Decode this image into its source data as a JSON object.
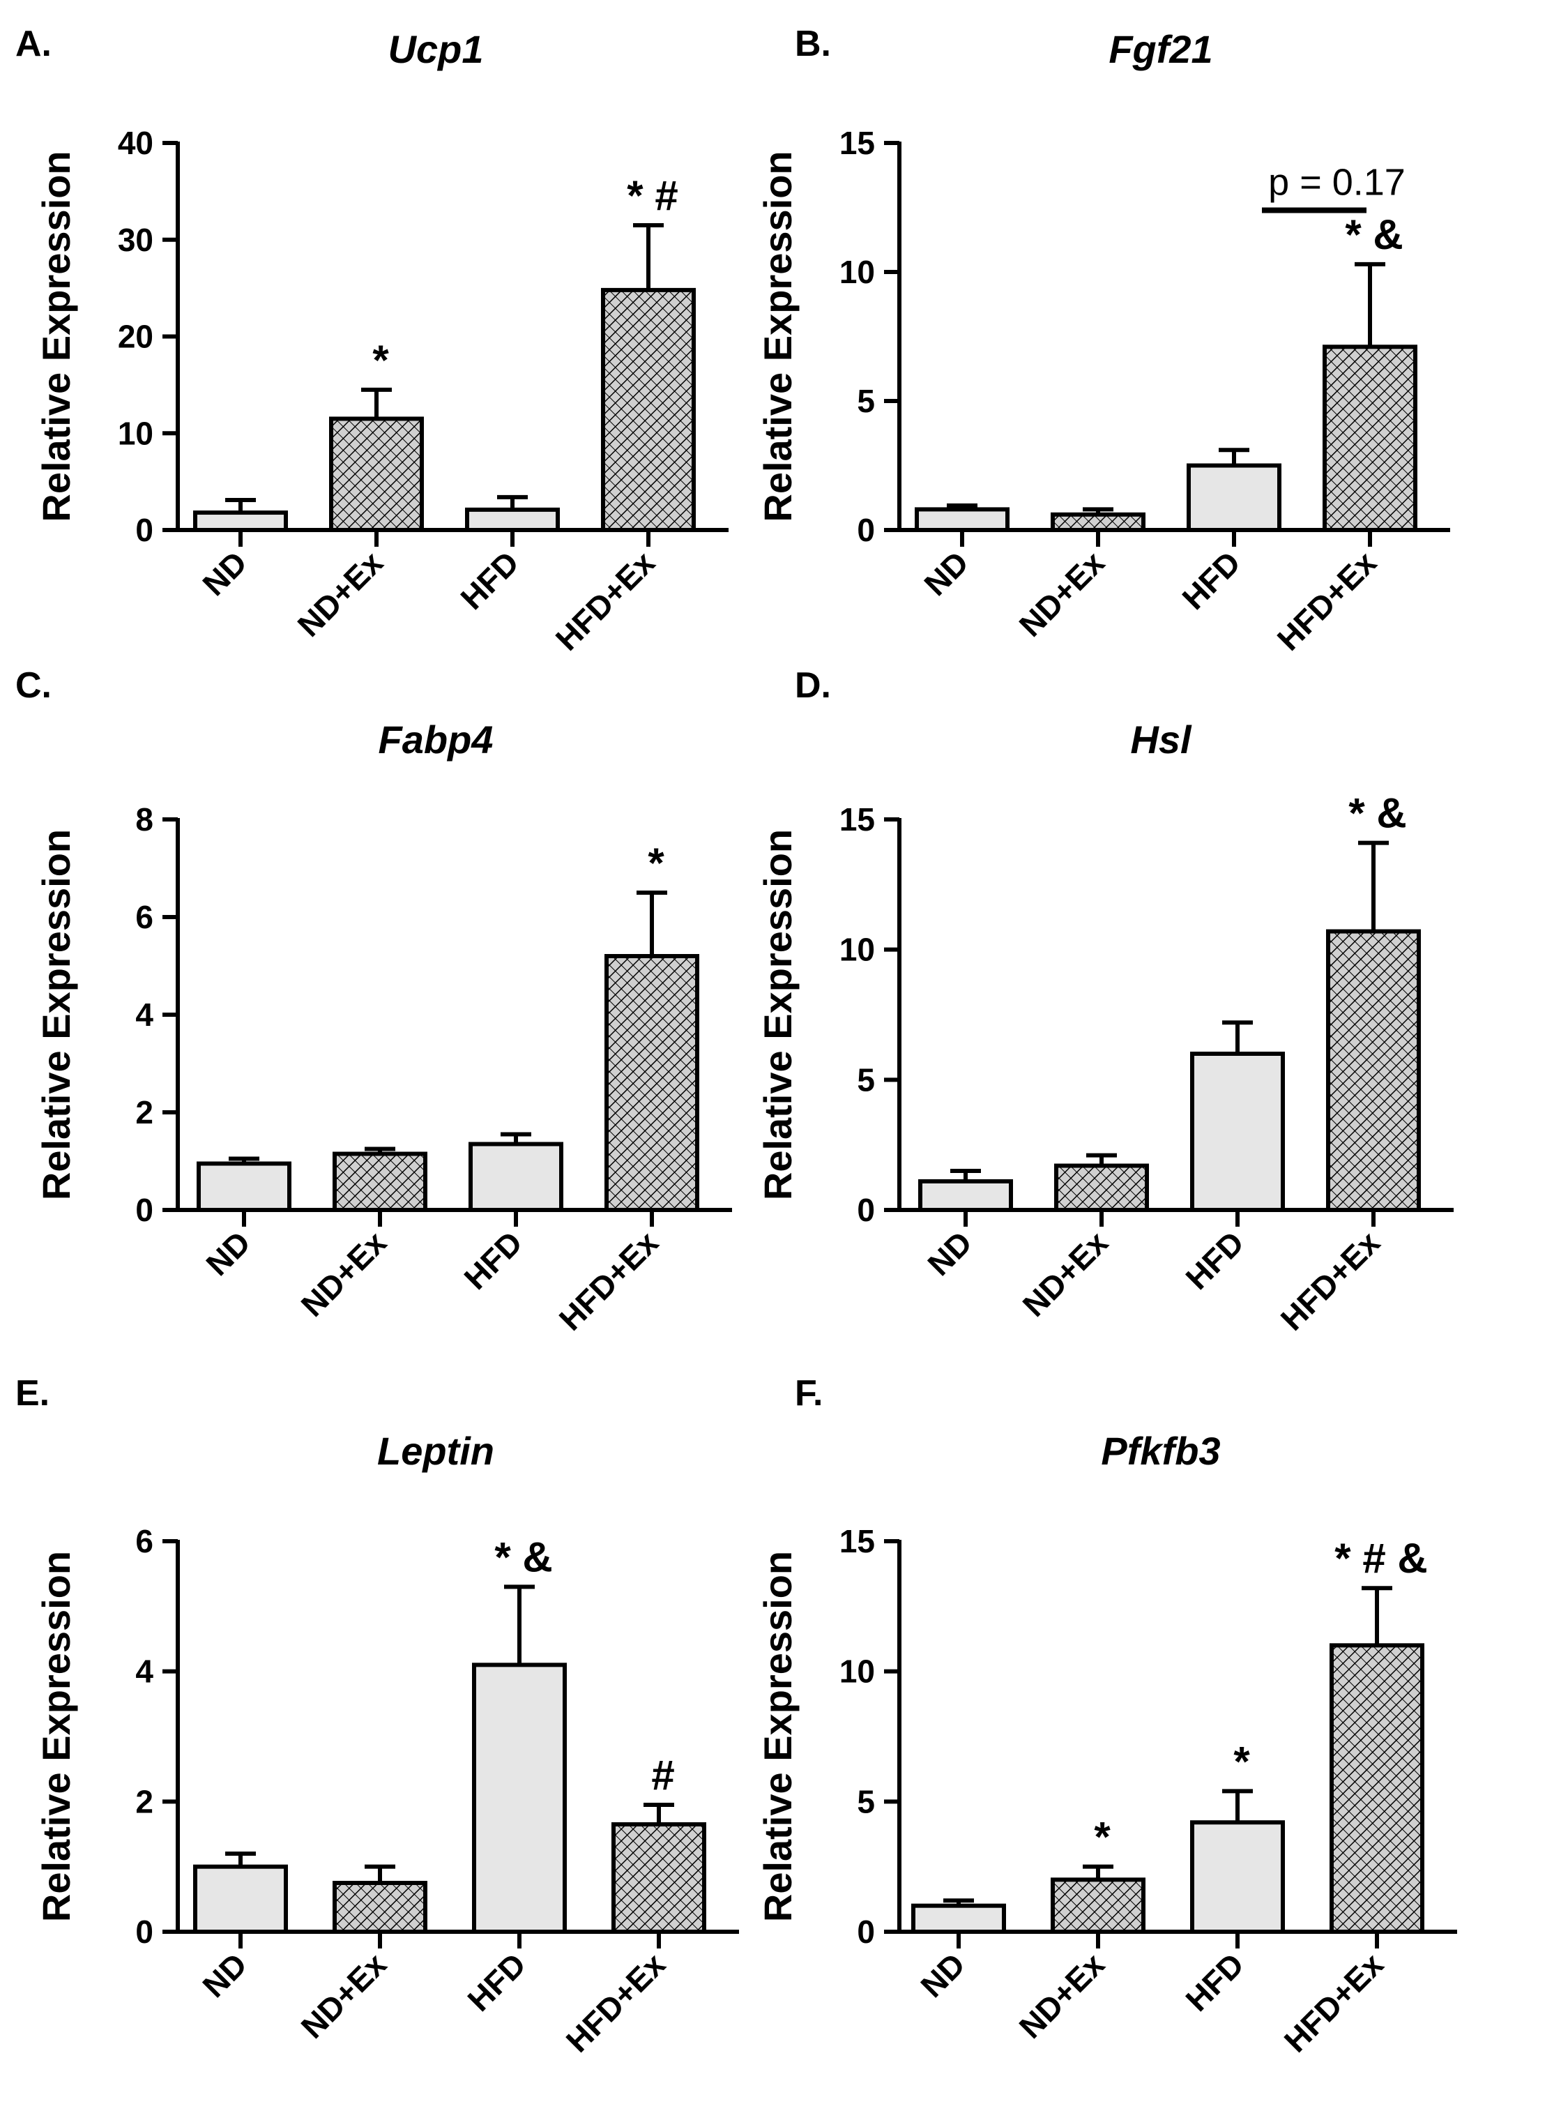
{
  "figure": {
    "ylabel": "Relative Expression",
    "colors": {
      "axis": "#000000",
      "bar_plain": "#e6e6e6",
      "bar_hatch_bg": "#d0d0d0",
      "hatch_line": "#000000"
    }
  },
  "chart_data": [
    {
      "panel": "A.",
      "type": "bar",
      "title": "Ucp1",
      "ylabel": "Relative Expression",
      "categories": [
        "ND",
        "ND+Ex",
        "HFD",
        "HFD+Ex"
      ],
      "values": [
        1.8,
        11.5,
        2.1,
        24.8
      ],
      "errors": [
        1.3,
        3.0,
        1.3,
        6.7
      ],
      "hatched": [
        false,
        true,
        false,
        true
      ],
      "ylim": [
        0,
        40
      ],
      "yticks": [
        0,
        10,
        20,
        30,
        40
      ],
      "annotations": [
        {
          "bar": 1,
          "text": "*"
        },
        {
          "bar": 3,
          "text": "* #"
        }
      ]
    },
    {
      "panel": "B.",
      "type": "bar",
      "title": "Fgf21",
      "ylabel": "Relative Expression",
      "categories": [
        "ND",
        "ND+Ex",
        "HFD",
        "HFD+Ex"
      ],
      "values": [
        0.8,
        0.6,
        2.5,
        7.1
      ],
      "errors": [
        0.15,
        0.2,
        0.6,
        3.2
      ],
      "hatched": [
        false,
        true,
        false,
        true
      ],
      "ylim": [
        0,
        15
      ],
      "yticks": [
        0,
        5,
        10,
        15
      ],
      "annotations": [
        {
          "bar": 3,
          "text": "* &"
        }
      ],
      "bracket": {
        "from": 2,
        "to": 3,
        "y": 12.5,
        "text": "p = 0.17"
      }
    },
    {
      "panel": "C.",
      "type": "bar",
      "title": "Fabp4",
      "ylabel": "Relative Expression",
      "categories": [
        "ND",
        "ND+Ex",
        "HFD",
        "HFD+Ex"
      ],
      "values": [
        0.95,
        1.15,
        1.35,
        5.2
      ],
      "errors": [
        0.1,
        0.1,
        0.2,
        1.3
      ],
      "hatched": [
        false,
        true,
        false,
        true
      ],
      "ylim": [
        0,
        8
      ],
      "yticks": [
        0,
        2,
        4,
        6,
        8
      ],
      "annotations": [
        {
          "bar": 3,
          "text": "*"
        }
      ]
    },
    {
      "panel": "D.",
      "type": "bar",
      "title": "Hsl",
      "ylabel": "Relative Expression",
      "categories": [
        "ND",
        "ND+Ex",
        "HFD",
        "HFD+Ex"
      ],
      "values": [
        1.1,
        1.7,
        6.0,
        10.7
      ],
      "errors": [
        0.4,
        0.4,
        1.2,
        3.4
      ],
      "hatched": [
        false,
        true,
        false,
        true
      ],
      "ylim": [
        0,
        15
      ],
      "yticks": [
        0,
        5,
        10,
        15
      ],
      "annotations": [
        {
          "bar": 3,
          "text": "* &"
        }
      ]
    },
    {
      "panel": "E.",
      "type": "bar",
      "title": "Leptin",
      "ylabel": "Relative Expression",
      "categories": [
        "ND",
        "ND+Ex",
        "HFD",
        "HFD+Ex"
      ],
      "values": [
        1.0,
        0.75,
        4.1,
        1.65
      ],
      "errors": [
        0.2,
        0.25,
        1.2,
        0.3
      ],
      "hatched": [
        false,
        true,
        false,
        true
      ],
      "ylim": [
        0,
        6
      ],
      "yticks": [
        0,
        2,
        4,
        6
      ],
      "annotations": [
        {
          "bar": 2,
          "text": "* &"
        },
        {
          "bar": 3,
          "text": "#"
        }
      ]
    },
    {
      "panel": "F.",
      "type": "bar",
      "title": "Pfkfb3",
      "ylabel": "Relative Expression",
      "categories": [
        "ND",
        "ND+Ex",
        "HFD",
        "HFD+Ex"
      ],
      "values": [
        1.0,
        2.0,
        4.2,
        11.0
      ],
      "errors": [
        0.2,
        0.5,
        1.2,
        2.2
      ],
      "hatched": [
        false,
        true,
        false,
        true
      ],
      "ylim": [
        0,
        15
      ],
      "yticks": [
        0,
        5,
        10,
        15
      ],
      "annotations": [
        {
          "bar": 1,
          "text": "*"
        },
        {
          "bar": 2,
          "text": "*"
        },
        {
          "bar": 3,
          "text": "* # &"
        }
      ]
    }
  ]
}
